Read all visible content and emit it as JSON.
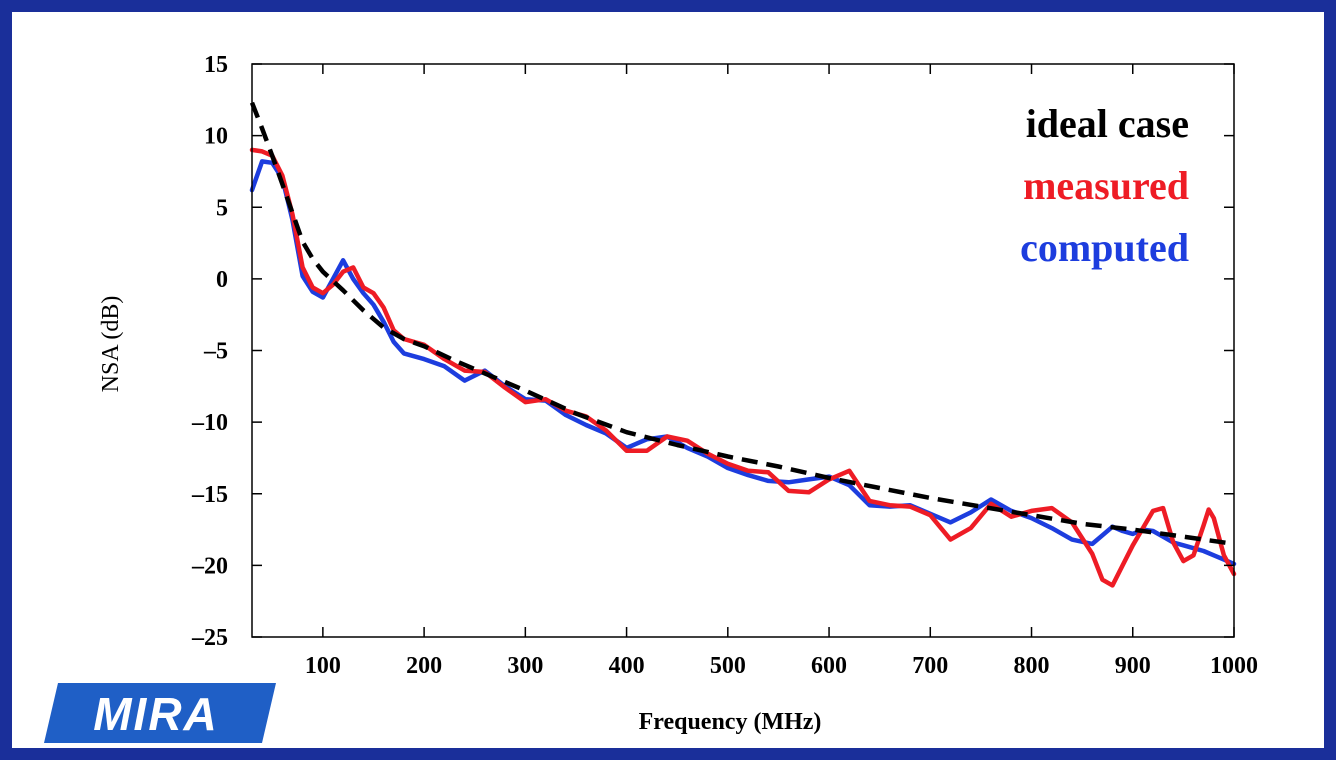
{
  "logo": {
    "text": "MIRA",
    "color": "#1f5fc6"
  },
  "chart_data": {
    "type": "line",
    "title": "",
    "xlabel": "Frequency (MHz)",
    "ylabel": "NSA (dB)",
    "xlim": [
      30,
      1000
    ],
    "ylim": [
      -25,
      15
    ],
    "xticks": [
      "100",
      "200",
      "300",
      "400",
      "500",
      "600",
      "700",
      "800",
      "900",
      "1000"
    ],
    "xtick_values": [
      100,
      200,
      300,
      400,
      500,
      600,
      700,
      800,
      900,
      1000
    ],
    "yticks": [
      "15",
      "10",
      "5",
      "0",
      "–5",
      "–10",
      "–15",
      "–20",
      "–25"
    ],
    "ytick_values": [
      15,
      10,
      5,
      0,
      -5,
      -10,
      -15,
      -20,
      -25
    ],
    "grid": false,
    "legend_position": "top-right",
    "series": [
      {
        "name": "ideal case",
        "color": "#000000",
        "dash": true,
        "x": [
          30,
          40,
          50,
          60,
          70,
          80,
          90,
          100,
          120,
          140,
          160,
          180,
          200,
          230,
          260,
          300,
          350,
          400,
          450,
          500,
          550,
          600,
          650,
          700,
          750,
          800,
          850,
          900,
          950,
          1000
        ],
        "y": [
          12.3,
          10.5,
          8.6,
          6.6,
          4.6,
          2.6,
          1.4,
          0.5,
          -0.8,
          -2.2,
          -3.4,
          -4.2,
          -4.7,
          -5.7,
          -6.6,
          -7.8,
          -9.4,
          -10.7,
          -11.6,
          -12.4,
          -13.1,
          -13.9,
          -14.6,
          -15.3,
          -15.9,
          -16.5,
          -17.1,
          -17.5,
          -18.0,
          -18.5
        ]
      },
      {
        "name": "measured",
        "color": "#ee1c25",
        "dash": false,
        "x": [
          30,
          40,
          50,
          60,
          70,
          80,
          90,
          100,
          110,
          120,
          130,
          140,
          150,
          160,
          170,
          180,
          200,
          220,
          240,
          260,
          280,
          300,
          320,
          340,
          360,
          380,
          400,
          420,
          440,
          460,
          480,
          500,
          520,
          540,
          560,
          580,
          600,
          620,
          640,
          660,
          680,
          700,
          720,
          740,
          760,
          780,
          800,
          820,
          840,
          860,
          870,
          880,
          890,
          900,
          910,
          920,
          930,
          940,
          950,
          960,
          970,
          975,
          980,
          990,
          1000
        ],
        "y": [
          9.0,
          8.9,
          8.6,
          7.2,
          4.5,
          0.8,
          -0.6,
          -1.0,
          -0.4,
          0.5,
          0.8,
          -0.6,
          -1.0,
          -2.0,
          -3.6,
          -4.2,
          -4.6,
          -5.6,
          -6.4,
          -6.5,
          -7.6,
          -8.6,
          -8.4,
          -9.2,
          -9.6,
          -10.6,
          -12.0,
          -12.0,
          -11.0,
          -11.3,
          -12.2,
          -12.9,
          -13.4,
          -13.5,
          -14.8,
          -14.9,
          -14.0,
          -13.4,
          -15.5,
          -15.8,
          -15.9,
          -16.5,
          -18.2,
          -17.4,
          -15.7,
          -16.6,
          -16.2,
          -16.0,
          -17.0,
          -19.2,
          -21.0,
          -21.4,
          -20.0,
          -18.6,
          -17.4,
          -16.2,
          -16.0,
          -18.4,
          -19.7,
          -19.3,
          -17.2,
          -16.1,
          -16.7,
          -19.3,
          -20.6
        ]
      },
      {
        "name": "computed",
        "color": "#1d3dde",
        "dash": false,
        "x": [
          30,
          40,
          50,
          60,
          70,
          80,
          90,
          100,
          110,
          120,
          130,
          140,
          150,
          160,
          170,
          180,
          200,
          220,
          240,
          260,
          280,
          300,
          320,
          340,
          360,
          380,
          400,
          420,
          440,
          460,
          480,
          500,
          520,
          540,
          560,
          580,
          600,
          620,
          640,
          660,
          680,
          700,
          720,
          740,
          760,
          780,
          800,
          820,
          840,
          860,
          870,
          880,
          890,
          900,
          910,
          920,
          930,
          940,
          950,
          960,
          970,
          980,
          990,
          1000
        ],
        "y": [
          6.2,
          8.2,
          8.1,
          7.0,
          4.1,
          0.2,
          -0.9,
          -1.3,
          0.0,
          1.3,
          0.0,
          -1.0,
          -1.8,
          -3.0,
          -4.4,
          -5.2,
          -5.6,
          -6.1,
          -7.1,
          -6.4,
          -7.5,
          -8.4,
          -8.5,
          -9.5,
          -10.2,
          -10.8,
          -11.8,
          -11.2,
          -11.0,
          -11.8,
          -12.4,
          -13.2,
          -13.7,
          -14.1,
          -14.2,
          -14.0,
          -13.8,
          -14.4,
          -15.8,
          -15.9,
          -15.8,
          -16.4,
          -17.0,
          -16.3,
          -15.4,
          -16.2,
          -16.7,
          -17.4,
          -18.2,
          -18.5,
          -17.9,
          -17.3,
          -17.6,
          -17.8,
          -17.5,
          -17.6,
          -18.0,
          -18.4,
          -18.6,
          -18.8,
          -19.0,
          -19.3,
          -19.6,
          -19.9
        ]
      }
    ]
  }
}
